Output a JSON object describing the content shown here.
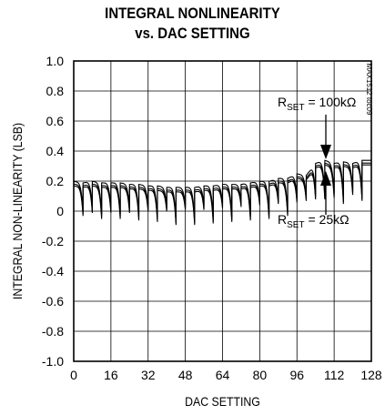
{
  "chart_data": {
    "type": "line",
    "title_line1": "INTEGRAL NONLINEARITY",
    "title_line2": "vs. DAC SETTING",
    "xlabel": "DAC SETTING",
    "ylabel": "INTEGRAL NON-LINEARITY (LSB)",
    "watermark": "MAX1512 toc09",
    "xlim": [
      0,
      128
    ],
    "ylim": [
      -1.0,
      1.0
    ],
    "x_ticks": [
      "0",
      "16",
      "32",
      "48",
      "64",
      "80",
      "96",
      "112",
      "128"
    ],
    "y_ticks": [
      "1.0",
      "0.8",
      "0.6",
      "0.4",
      "0.2",
      "0",
      "-0.2",
      "-0.4",
      "-0.6",
      "-0.8",
      "-1.0"
    ],
    "grid": true,
    "annotations": [
      {
        "base": "R",
        "sub": "SET",
        "rest": " = 100kΩ"
      },
      {
        "base": "R",
        "sub": "SET",
        "rest": " = 25kΩ"
      }
    ],
    "series": [
      {
        "x": [
          0,
          4,
          8,
          12,
          16,
          20,
          24,
          28,
          32,
          36,
          40,
          44,
          48,
          52,
          56,
          60,
          64,
          68,
          72,
          76,
          80,
          84,
          88,
          92,
          96,
          100,
          104,
          108,
          112,
          116,
          120,
          124,
          128
        ],
        "peak": [
          0.18,
          0.17,
          0.18,
          0.17,
          0.17,
          0.17,
          0.16,
          0.16,
          0.15,
          0.15,
          0.14,
          0.14,
          0.14,
          0.14,
          0.15,
          0.15,
          0.16,
          0.16,
          0.16,
          0.17,
          0.18,
          0.18,
          0.2,
          0.2,
          0.23,
          0.22,
          0.3,
          0.32,
          0.3,
          0.31,
          0.3,
          0.32,
          0.32
        ],
        "dip": [
          0.18,
          -0.02,
          0.0,
          -0.04,
          0.0,
          -0.04,
          0.0,
          -0.05,
          0.01,
          -0.06,
          0.01,
          -0.08,
          0.02,
          -0.08,
          0.02,
          -0.07,
          0.03,
          -0.06,
          0.04,
          -0.05,
          0.05,
          -0.04,
          0.06,
          -0.02,
          0.07,
          0.08,
          0.09,
          0.09,
          0.1,
          0.06,
          0.12,
          0.08,
          0.32
        ]
      }
    ]
  }
}
